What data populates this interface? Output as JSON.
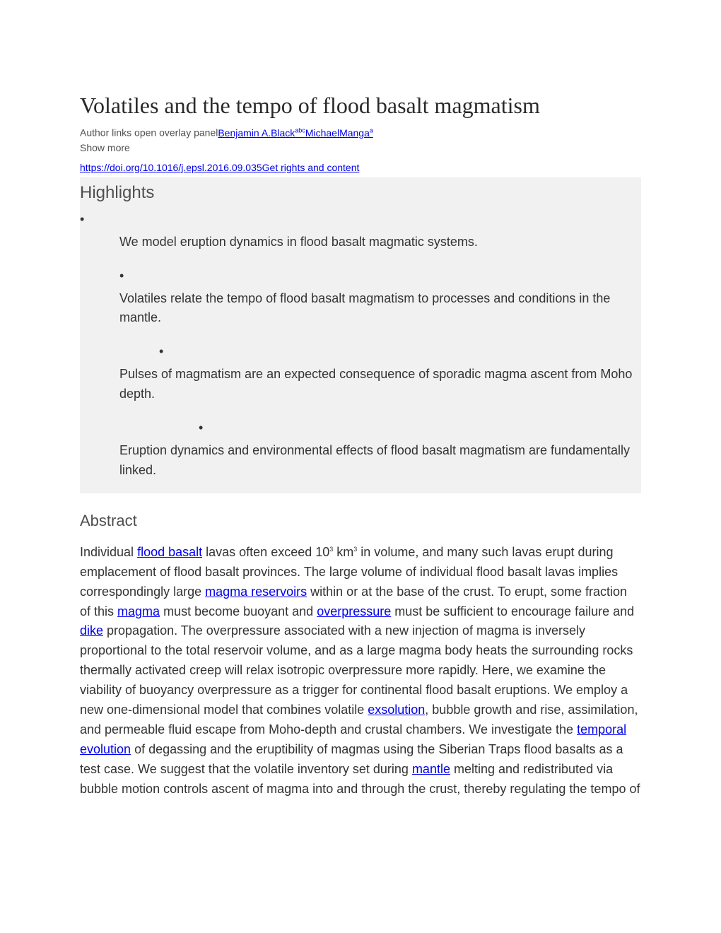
{
  "title": "Volatiles and the tempo of flood basalt magmatism",
  "author_prefix": "Author links open overlay panel",
  "authors": [
    {
      "first": "Benjamin A.",
      "last": "Black",
      "aff": "abc"
    },
    {
      "first": "Michael",
      "last": "Manga",
      "aff": "a"
    }
  ],
  "show_more": "Show more",
  "doi_url": "https://doi.org/10.1016/j.epsl.2016.09.035",
  "rights_link": "Get rights and content",
  "highlights_heading": "Highlights",
  "highlights": [
    "We model eruption dynamics in flood basalt magmatic systems.",
    "Volatiles relate the tempo of flood basalt magmatism to processes and conditions in the mantle.",
    "Pulses of magmatism are an expected consequence of sporadic magma ascent from Moho depth.",
    "Eruption dynamics and environmental effects of flood basalt magmatism are fundamentally linked."
  ],
  "abstract_heading": "Abstract",
  "abstract": {
    "t0": "Individual ",
    "l0": "flood basalt",
    "t1": " lavas often exceed 10",
    "exp": "3",
    "unit": " km",
    "exp2": "3",
    "t2": " in volume, and many such lavas erupt during emplacement of flood basalt provinces. The large volume of individual flood basalt lavas implies correspondingly large ",
    "l1": "magma reservoirs",
    "t3": " within or at the base of the crust. To erupt, some fraction of this ",
    "l2": "magma",
    "t4": " must become buoyant and ",
    "l3": "overpressure",
    "t5": " must be sufficient to encourage failure and ",
    "l4": "dike",
    "t6": " propagation. The overpressure associated with a new injection of magma is inversely proportional to the total reservoir volume, and as a large magma body heats the surrounding rocks thermally activated creep will relax isotropic overpressure more rapidly. Here, we examine the viability of buoyancy overpressure as a trigger for continental flood basalt eruptions. We employ a new one-dimensional model that combines volatile ",
    "l5": "exsolution",
    "t7": ", bubble growth and rise, assimilation, and permeable fluid escape from Moho-depth and crustal chambers. We investigate the ",
    "l6": "temporal evolution",
    "t8": " of degassing and the eruptibility of magmas using the Siberian Traps flood basalts as a test case. We suggest that the volatile inventory set during ",
    "l7": "mantle",
    "t9": " melting and redistributed via bubble motion controls ascent of magma into and through the crust, thereby regulating the tempo of "
  },
  "colors": {
    "link": "#0000ee",
    "text": "#333333",
    "heading": "#4f4f4f",
    "highlight_bg": "#f1f1f1"
  }
}
